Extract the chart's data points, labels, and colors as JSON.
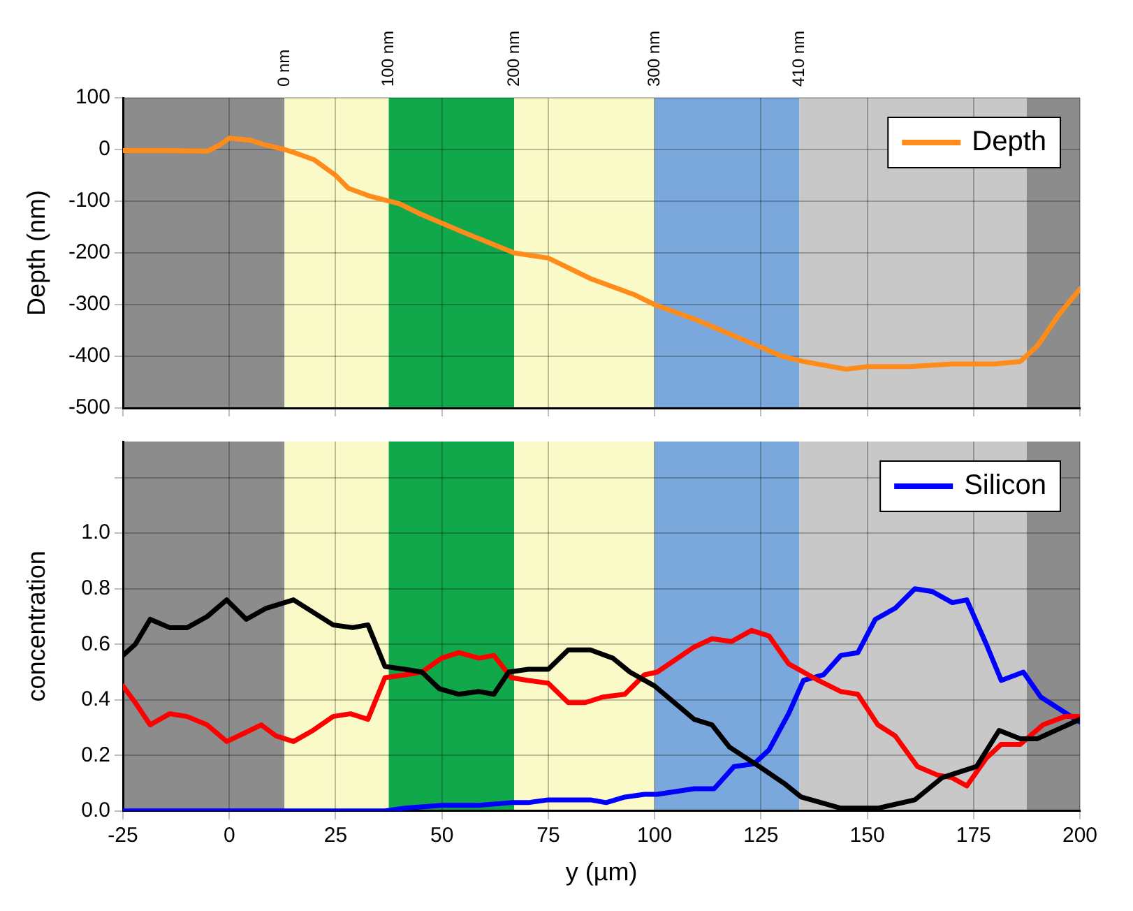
{
  "chart_data": [
    {
      "type": "line",
      "ylabel": "Depth (nm)",
      "xlim": [
        -25,
        200
      ],
      "xticks": [
        -25,
        0,
        25,
        50,
        75,
        100,
        125,
        150,
        175,
        200
      ],
      "ylim": [
        -500,
        100
      ],
      "yticks": [
        -500,
        -400,
        -300,
        -200,
        -100,
        0,
        100
      ],
      "tick_labels": "y",
      "grid": true,
      "legend": "top right",
      "marker": "none",
      "line_style": "solid",
      "bands": [
        {
          "axis": "x",
          "from": -25,
          "to": 13,
          "color": "#8c8c8c"
        },
        {
          "axis": "x",
          "from": 13,
          "to": 37.5,
          "color": "#fafac8",
          "label": "0 nm"
        },
        {
          "axis": "x",
          "from": 37.5,
          "to": 67,
          "color": "#10a84a",
          "label": "100 nm"
        },
        {
          "axis": "x",
          "from": 67,
          "to": 100,
          "color": "#fafac8",
          "label": "200 nm"
        },
        {
          "axis": "x",
          "from": 100,
          "to": 134,
          "color": "#7aa8dc",
          "label": "300 nm"
        },
        {
          "axis": "x",
          "from": 134,
          "to": 187.5,
          "color": "#c8c8c8",
          "label": "410 nm"
        },
        {
          "axis": "x",
          "from": 187.5,
          "to": 200,
          "color": "#8c8c8c"
        }
      ],
      "series": [
        {
          "name": "Depth",
          "color": "#ff8c1a",
          "x": [
            -25,
            -15,
            -5,
            -2,
            0,
            5,
            8,
            13,
            16,
            20,
            25,
            28,
            33,
            40,
            45,
            55,
            67,
            75,
            85,
            95,
            100,
            110,
            120,
            130,
            135,
            145,
            150,
            160,
            170,
            180,
            186,
            190,
            195,
            200
          ],
          "values": [
            -2,
            -2,
            -3,
            10,
            22,
            18,
            10,
            0,
            -8,
            -20,
            -50,
            -75,
            -90,
            -105,
            -125,
            -160,
            -200,
            -210,
            -250,
            -280,
            -300,
            -330,
            -365,
            -400,
            -410,
            -425,
            -420,
            -420,
            -415,
            -415,
            -410,
            -380,
            -320,
            -270
          ]
        }
      ]
    },
    {
      "type": "line",
      "xlabel": "y (µm)",
      "ylabel": "concentration",
      "xlim": [
        -25,
        200
      ],
      "xticks": [
        -25,
        0,
        25,
        50,
        75,
        100,
        125,
        150,
        175,
        200
      ],
      "ylim": [
        0,
        1.33
      ],
      "yticks": [
        {
          "value": 0,
          "label": "0.0"
        },
        {
          "value": 0.2,
          "label": "0.2"
        },
        {
          "value": 0.4,
          "label": "0.4"
        },
        {
          "value": 0.6,
          "label": "0.6"
        },
        {
          "value": 0.8,
          "label": "0.8"
        },
        {
          "value": 1.0,
          "label": "1.0"
        },
        {
          "value": 1.2,
          "label": null
        }
      ],
      "grid": true,
      "legend": "top right",
      "marker": "none",
      "line_style": "solid",
      "bands": [
        {
          "axis": "x",
          "from": -25,
          "to": 13,
          "color": "#8c8c8c"
        },
        {
          "axis": "x",
          "from": 13,
          "to": 37.5,
          "color": "#fafac8"
        },
        {
          "axis": "x",
          "from": 37.5,
          "to": 67,
          "color": "#10a84a"
        },
        {
          "axis": "x",
          "from": 67,
          "to": 100,
          "color": "#fafac8"
        },
        {
          "axis": "x",
          "from": 100,
          "to": 134,
          "color": "#7aa8dc"
        },
        {
          "axis": "x",
          "from": 134,
          "to": 187.5,
          "color": "#c8c8c8"
        },
        {
          "axis": "x",
          "from": 187.5,
          "to": 200,
          "color": "#8c8c8c"
        }
      ],
      "series": [
        {
          "color": "#000000",
          "x": [
            -25,
            -22.1,
            -18.6,
            -14,
            -9.9,
            -5.2,
            -0.6,
            4,
            8.7,
            15.1,
            24.4,
            29,
            32.6,
            36.6,
            41.3,
            45.3,
            49.4,
            54,
            58.7,
            62.2,
            65.7,
            70.3,
            75,
            79.7,
            84.9,
            90.2,
            94.2,
            100,
            109.3,
            113.5,
            117.6,
            124.6,
            130.4,
            134.5,
            143.8,
            152.5,
            161.2,
            167.6,
            175.7,
            181,
            186,
            190,
            200
          ],
          "values": [
            0.56,
            0.6,
            0.69,
            0.66,
            0.66,
            0.7,
            0.76,
            0.69,
            0.73,
            0.76,
            0.67,
            0.66,
            0.67,
            0.52,
            0.51,
            0.5,
            0.44,
            0.42,
            0.43,
            0.42,
            0.5,
            0.51,
            0.51,
            0.58,
            0.58,
            0.55,
            0.5,
            0.45,
            0.33,
            0.31,
            0.23,
            0.16,
            0.1,
            0.05,
            0.01,
            0.01,
            0.04,
            0.12,
            0.16,
            0.29,
            0.26,
            0.26,
            0.33
          ]
        },
        {
          "color": "#ff0000",
          "x": [
            -25,
            -22.1,
            -18.6,
            -14,
            -9.9,
            -5.2,
            -0.6,
            3.5,
            7.5,
            11,
            15.1,
            19.7,
            24.4,
            28.5,
            32.6,
            36.6,
            41.3,
            45.3,
            49.9,
            54,
            58.7,
            62.2,
            66.3,
            70.3,
            75,
            79.7,
            83.7,
            87.8,
            93,
            97.6,
            100.6,
            109.3,
            113.5,
            118.1,
            122.8,
            126.9,
            131.5,
            138.5,
            143.8,
            147.8,
            152.5,
            156.6,
            161.8,
            166.4,
            169.9,
            173.4,
            178,
            181.5,
            186,
            191.3,
            196.5,
            200
          ],
          "values": [
            0.45,
            0.39,
            0.31,
            0.35,
            0.34,
            0.31,
            0.25,
            0.28,
            0.31,
            0.27,
            0.25,
            0.29,
            0.34,
            0.35,
            0.33,
            0.48,
            0.49,
            0.5,
            0.55,
            0.57,
            0.55,
            0.56,
            0.48,
            0.47,
            0.46,
            0.39,
            0.39,
            0.41,
            0.42,
            0.49,
            0.5,
            0.59,
            0.62,
            0.61,
            0.65,
            0.63,
            0.53,
            0.47,
            0.43,
            0.42,
            0.31,
            0.27,
            0.16,
            0.13,
            0.12,
            0.09,
            0.19,
            0.24,
            0.24,
            0.31,
            0.34,
            0.34
          ]
        },
        {
          "name": "Silicon",
          "color": "#0000ff",
          "x": [
            -25,
            36.6,
            41.3,
            50,
            58.7,
            66.3,
            70.3,
            75,
            84.9,
            88.6,
            93,
            97.6,
            100.6,
            109.3,
            114,
            118.7,
            123.4,
            126.9,
            131.5,
            135,
            139.7,
            143.8,
            147.8,
            151.9,
            156.6,
            161.2,
            165.3,
            170,
            173.4,
            178,
            181.5,
            186.7,
            190.8,
            200
          ],
          "values": [
            0,
            0,
            0.01,
            0.02,
            0.02,
            0.03,
            0.03,
            0.04,
            0.04,
            0.03,
            0.05,
            0.06,
            0.06,
            0.08,
            0.08,
            0.16,
            0.17,
            0.22,
            0.35,
            0.47,
            0.49,
            0.56,
            0.57,
            0.69,
            0.73,
            0.8,
            0.79,
            0.75,
            0.76,
            0.6,
            0.47,
            0.5,
            0.41,
            0.32
          ]
        }
      ]
    }
  ]
}
